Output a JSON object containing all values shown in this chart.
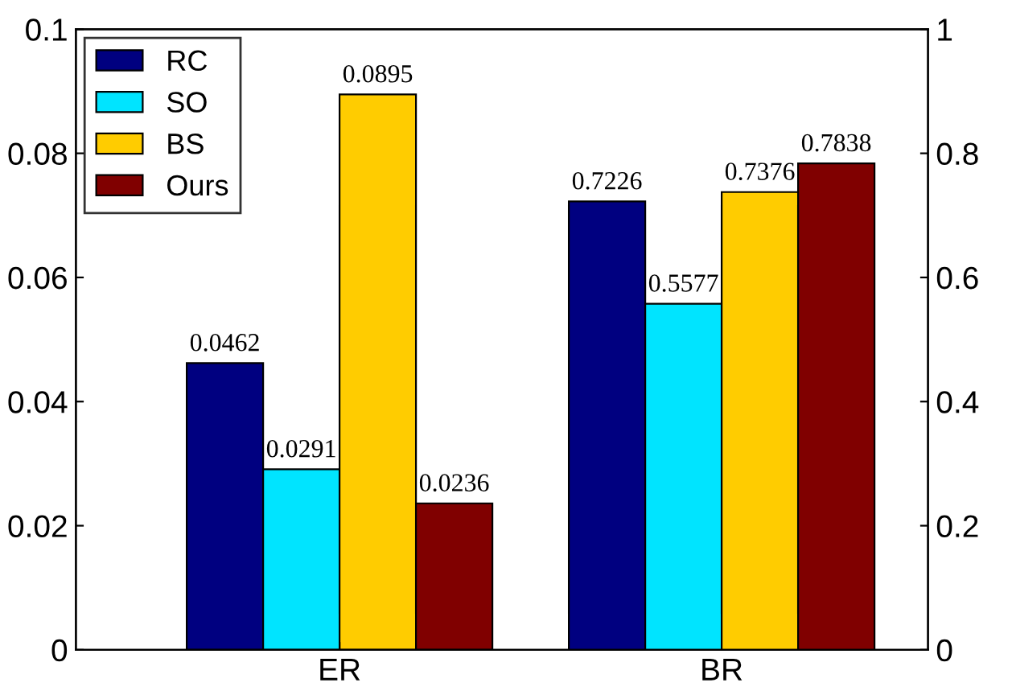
{
  "chart_data": {
    "type": "bar",
    "categories": [
      "ER",
      "BR"
    ],
    "series": [
      {
        "name": "RC",
        "color": "#000080",
        "values": [
          0.0462,
          null
        ]
      },
      {
        "name": "SO",
        "color": "#00e4ff",
        "values": [
          0.0291,
          null
        ]
      },
      {
        "name": "BS",
        "color": "#ffcc00",
        "values": [
          0.0895,
          null
        ]
      },
      {
        "name": "Ours",
        "color": "#800000",
        "values": [
          0.0236,
          null
        ]
      },
      {
        "color": "#000080",
        "values": [
          null,
          0.7226
        ],
        "axis": "y2"
      },
      {
        "color": "#00e4ff",
        "values": [
          null,
          0.5577
        ],
        "axis": "y2"
      },
      {
        "color": "#ffcc00",
        "values": [
          null,
          0.7376
        ],
        "axis": "y2"
      },
      {
        "color": "#800000",
        "values": [
          null,
          0.7838
        ],
        "axis": "y2"
      }
    ],
    "ylim": [
      0,
      0.1
    ],
    "yticks": [
      0,
      0.02,
      0.04,
      0.06,
      0.08,
      0.1
    ],
    "y2lim": [
      0,
      1
    ],
    "y2ticks": [
      0,
      0.2,
      0.4,
      0.6,
      0.8,
      1
    ],
    "data_labels": true,
    "legend": "top left",
    "grid": false
  }
}
